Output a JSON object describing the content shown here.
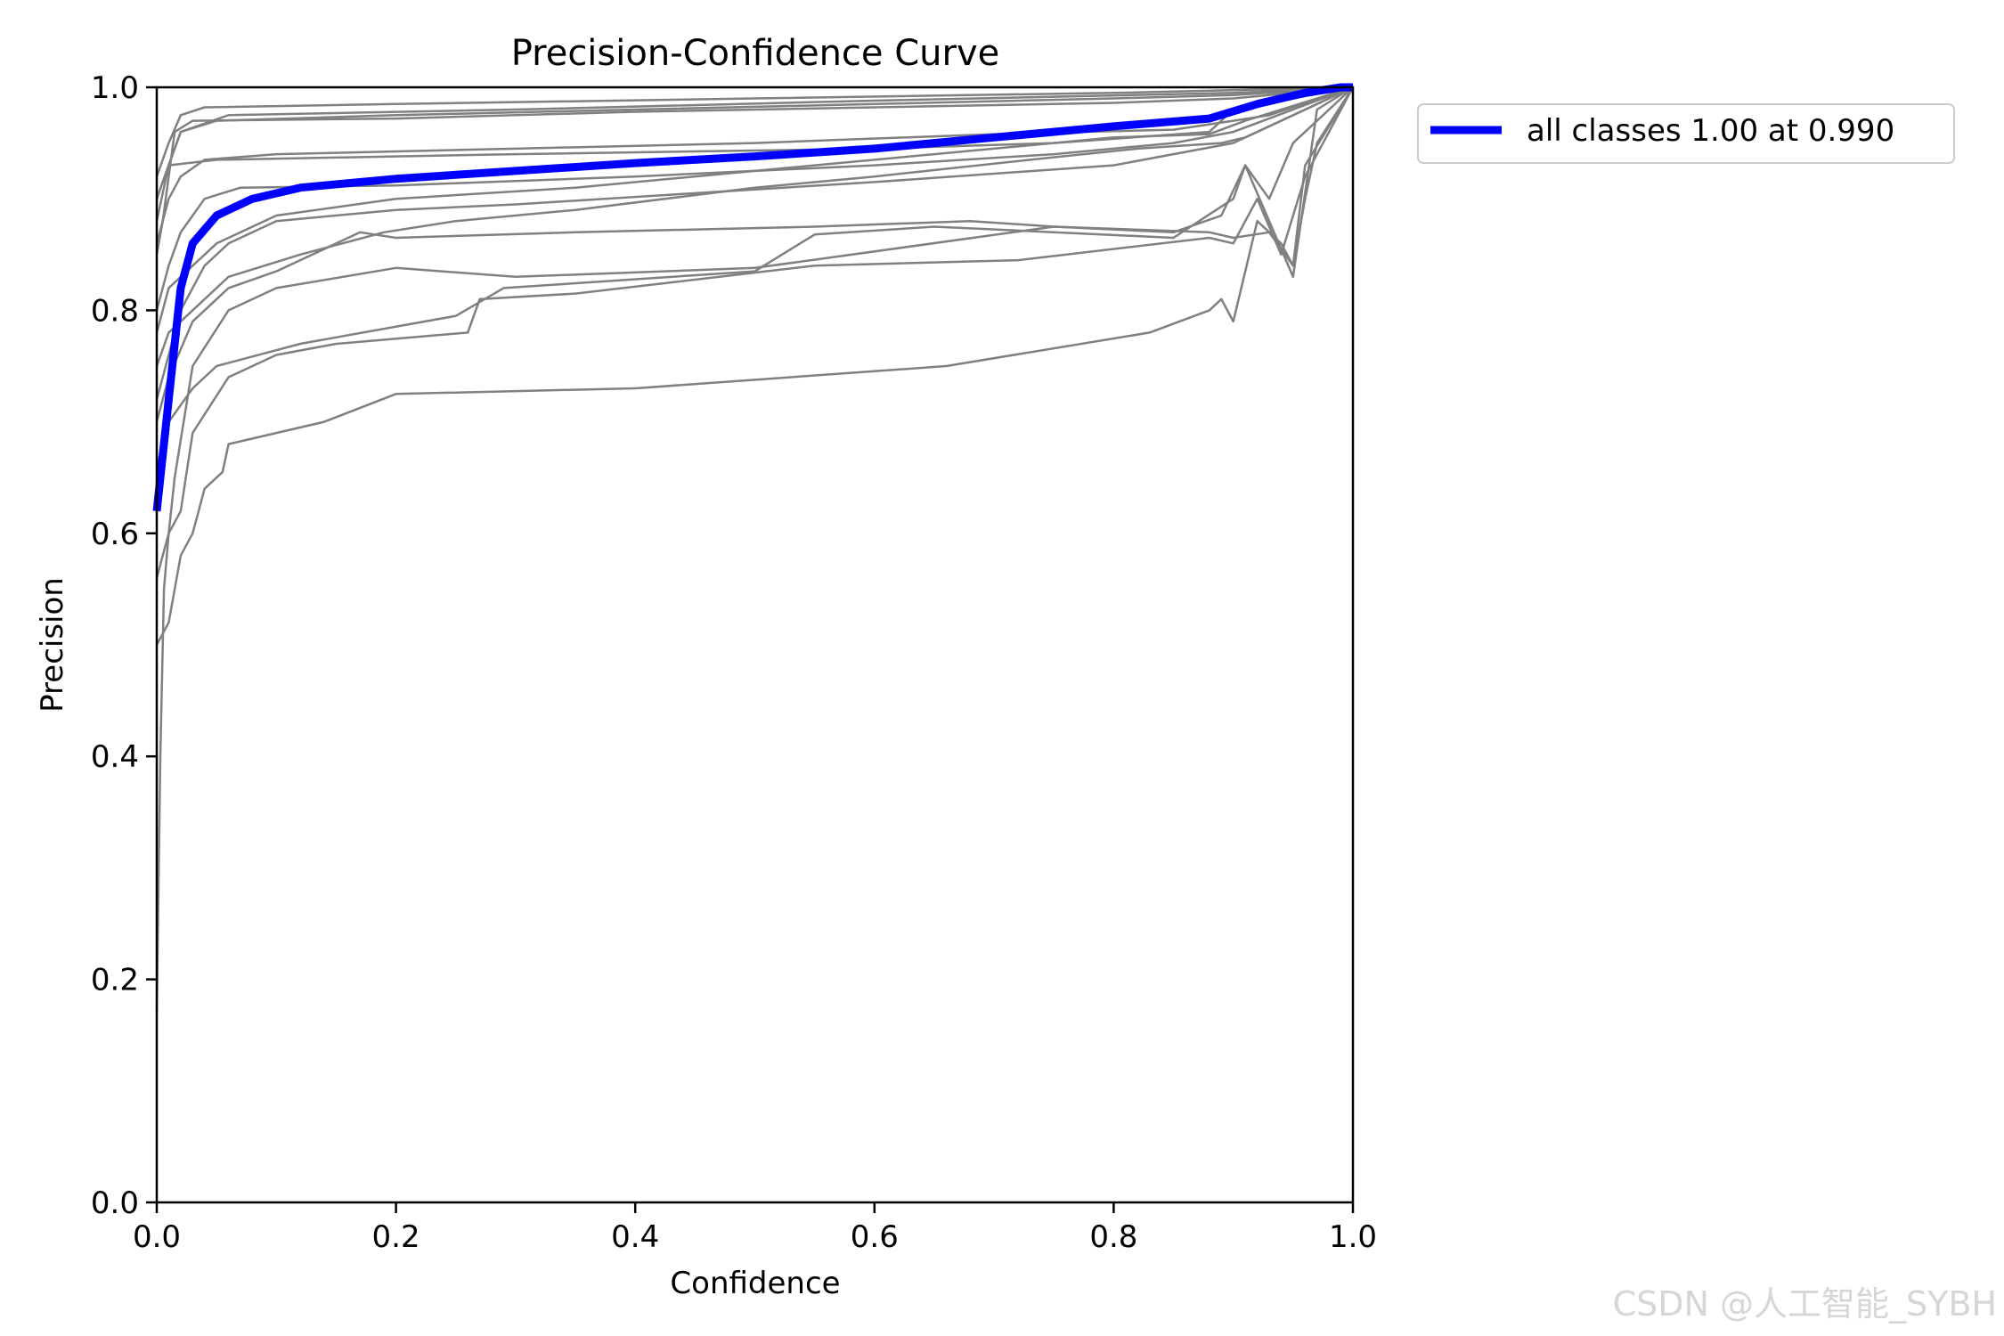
{
  "chart_data": {
    "type": "line",
    "title": "Precision-Confidence Curve",
    "xlabel": "Confidence",
    "ylabel": "Precision",
    "xlim": [
      0,
      1
    ],
    "ylim": [
      0,
      1
    ],
    "xticks": [
      "0.0",
      "0.2",
      "0.4",
      "0.6",
      "0.8",
      "1.0"
    ],
    "yticks": [
      "0.0",
      "0.2",
      "0.4",
      "0.6",
      "0.8",
      "1.0"
    ],
    "legend_position": "outside-top-right",
    "colors": {
      "all": "#0000ff",
      "class": "#808080"
    },
    "series": [
      {
        "name": "all classes 1.00 at 0.990",
        "points": [
          [
            0,
            0.62
          ],
          [
            0.01,
            0.72
          ],
          [
            0.02,
            0.82
          ],
          [
            0.03,
            0.86
          ],
          [
            0.05,
            0.885
          ],
          [
            0.08,
            0.9
          ],
          [
            0.12,
            0.91
          ],
          [
            0.2,
            0.918
          ],
          [
            0.3,
            0.925
          ],
          [
            0.4,
            0.932
          ],
          [
            0.5,
            0.938
          ],
          [
            0.6,
            0.945
          ],
          [
            0.7,
            0.955
          ],
          [
            0.8,
            0.965
          ],
          [
            0.88,
            0.972
          ],
          [
            0.92,
            0.985
          ],
          [
            0.96,
            0.995
          ],
          [
            0.99,
            1.0
          ],
          [
            1.0,
            1.0
          ]
        ]
      }
    ],
    "class_curves": [
      [
        [
          0,
          0.17
        ],
        [
          0.003,
          0.4
        ],
        [
          0.006,
          0.55
        ],
        [
          0.01,
          0.6
        ],
        [
          0.015,
          0.65
        ],
        [
          0.03,
          0.75
        ],
        [
          0.06,
          0.8
        ],
        [
          0.1,
          0.82
        ],
        [
          0.2,
          0.838
        ],
        [
          0.3,
          0.83
        ],
        [
          0.5,
          0.838
        ],
        [
          0.75,
          0.875
        ],
        [
          0.88,
          0.87
        ],
        [
          0.9,
          0.865
        ],
        [
          0.93,
          0.87
        ],
        [
          0.95,
          0.84
        ],
        [
          0.96,
          0.9
        ],
        [
          0.97,
          0.95
        ],
        [
          1.0,
          1.0
        ]
      ],
      [
        [
          0,
          0.56
        ],
        [
          0.01,
          0.6
        ],
        [
          0.02,
          0.62
        ],
        [
          0.03,
          0.69
        ],
        [
          0.06,
          0.74
        ],
        [
          0.1,
          0.76
        ],
        [
          0.15,
          0.77
        ],
        [
          0.26,
          0.78
        ],
        [
          0.27,
          0.81
        ],
        [
          0.35,
          0.815
        ],
        [
          0.55,
          0.84
        ],
        [
          0.72,
          0.845
        ],
        [
          0.88,
          0.865
        ],
        [
          0.9,
          0.86
        ],
        [
          0.92,
          0.9
        ],
        [
          0.94,
          0.85
        ],
        [
          0.96,
          0.92
        ],
        [
          1.0,
          1.0
        ]
      ],
      [
        [
          0,
          0.5
        ],
        [
          0.01,
          0.52
        ],
        [
          0.02,
          0.58
        ],
        [
          0.03,
          0.6
        ],
        [
          0.04,
          0.64
        ],
        [
          0.055,
          0.655
        ],
        [
          0.06,
          0.68
        ],
        [
          0.14,
          0.7
        ],
        [
          0.2,
          0.725
        ],
        [
          0.4,
          0.73
        ],
        [
          0.66,
          0.75
        ],
        [
          0.83,
          0.78
        ],
        [
          0.88,
          0.8
        ],
        [
          0.89,
          0.81
        ],
        [
          0.9,
          0.79
        ],
        [
          0.92,
          0.88
        ],
        [
          0.94,
          0.86
        ],
        [
          0.95,
          0.84
        ],
        [
          0.96,
          0.93
        ],
        [
          1.0,
          1.0
        ]
      ],
      [
        [
          0,
          0.66
        ],
        [
          0.01,
          0.7
        ],
        [
          0.03,
          0.73
        ],
        [
          0.05,
          0.75
        ],
        [
          0.12,
          0.77
        ],
        [
          0.25,
          0.795
        ],
        [
          0.29,
          0.82
        ],
        [
          0.5,
          0.835
        ],
        [
          0.55,
          0.868
        ],
        [
          0.65,
          0.875
        ],
        [
          0.85,
          0.865
        ],
        [
          0.9,
          0.9
        ],
        [
          0.91,
          0.93
        ],
        [
          0.93,
          0.88
        ],
        [
          0.95,
          0.83
        ],
        [
          0.97,
          0.98
        ],
        [
          1.0,
          1.0
        ]
      ],
      [
        [
          0,
          0.7
        ],
        [
          0.01,
          0.74
        ],
        [
          0.03,
          0.79
        ],
        [
          0.06,
          0.82
        ],
        [
          0.1,
          0.835
        ],
        [
          0.17,
          0.87
        ],
        [
          0.2,
          0.865
        ],
        [
          0.35,
          0.87
        ],
        [
          0.55,
          0.875
        ],
        [
          0.68,
          0.88
        ],
        [
          0.75,
          0.875
        ],
        [
          0.85,
          0.87
        ],
        [
          0.89,
          0.885
        ],
        [
          0.91,
          0.93
        ],
        [
          0.93,
          0.9
        ],
        [
          0.95,
          0.95
        ],
        [
          0.97,
          0.97
        ],
        [
          1.0,
          1.0
        ]
      ],
      [
        [
          0,
          0.75
        ],
        [
          0.01,
          0.78
        ],
        [
          0.03,
          0.8
        ],
        [
          0.06,
          0.83
        ],
        [
          0.12,
          0.85
        ],
        [
          0.19,
          0.87
        ],
        [
          0.25,
          0.88
        ],
        [
          0.35,
          0.89
        ],
        [
          0.5,
          0.91
        ],
        [
          0.6,
          0.92
        ],
        [
          0.73,
          0.935
        ],
        [
          0.82,
          0.945
        ],
        [
          0.89,
          0.95
        ],
        [
          0.91,
          0.955
        ],
        [
          0.94,
          0.97
        ],
        [
          1.0,
          1.0
        ]
      ],
      [
        [
          0,
          0.86
        ],
        [
          0.01,
          0.9
        ],
        [
          0.02,
          0.92
        ],
        [
          0.04,
          0.935
        ],
        [
          0.1,
          0.94
        ],
        [
          0.3,
          0.945
        ],
        [
          0.5,
          0.95
        ],
        [
          0.7,
          0.958
        ],
        [
          0.85,
          0.962
        ],
        [
          0.9,
          0.97
        ],
        [
          0.93,
          0.975
        ],
        [
          1.0,
          1.0
        ]
      ],
      [
        [
          0,
          0.9
        ],
        [
          0.01,
          0.93
        ],
        [
          0.02,
          0.96
        ],
        [
          0.05,
          0.97
        ],
        [
          0.2,
          0.975
        ],
        [
          0.4,
          0.98
        ],
        [
          0.6,
          0.985
        ],
        [
          0.8,
          0.99
        ],
        [
          0.9,
          0.993
        ],
        [
          1.0,
          1.0
        ]
      ],
      [
        [
          0,
          0.92
        ],
        [
          0.01,
          0.95
        ],
        [
          0.02,
          0.975
        ],
        [
          0.04,
          0.982
        ],
        [
          0.2,
          0.985
        ],
        [
          0.5,
          0.99
        ],
        [
          0.8,
          0.995
        ],
        [
          1.0,
          1.0
        ]
      ],
      [
        [
          0,
          0.85
        ],
        [
          0.005,
          0.88
        ],
        [
          0.015,
          0.96
        ],
        [
          0.03,
          0.97
        ],
        [
          0.2,
          0.972
        ],
        [
          0.4,
          0.978
        ],
        [
          0.6,
          0.982
        ],
        [
          0.8,
          0.986
        ],
        [
          0.9,
          0.99
        ],
        [
          1.0,
          1.0
        ]
      ],
      [
        [
          0,
          0.8
        ],
        [
          0.01,
          0.84
        ],
        [
          0.02,
          0.87
        ],
        [
          0.04,
          0.9
        ],
        [
          0.07,
          0.91
        ],
        [
          0.2,
          0.912
        ],
        [
          0.4,
          0.92
        ],
        [
          0.6,
          0.93
        ],
        [
          0.75,
          0.94
        ],
        [
          0.85,
          0.95
        ],
        [
          0.9,
          0.96
        ],
        [
          0.95,
          0.98
        ],
        [
          1.0,
          1.0
        ]
      ],
      [
        [
          0,
          0.72
        ],
        [
          0.02,
          0.8
        ],
        [
          0.04,
          0.84
        ],
        [
          0.06,
          0.86
        ],
        [
          0.1,
          0.88
        ],
        [
          0.2,
          0.89
        ],
        [
          0.3,
          0.895
        ],
        [
          0.45,
          0.905
        ],
        [
          0.6,
          0.915
        ],
        [
          0.8,
          0.93
        ],
        [
          0.9,
          0.95
        ],
        [
          1.0,
          1.0
        ]
      ],
      [
        [
          0,
          0.88
        ],
        [
          0.01,
          0.93
        ],
        [
          0.05,
          0.935
        ],
        [
          0.3,
          0.94
        ],
        [
          0.6,
          0.945
        ],
        [
          0.75,
          0.95
        ],
        [
          0.88,
          0.96
        ],
        [
          0.9,
          0.98
        ],
        [
          1.0,
          1.0
        ]
      ],
      [
        [
          0,
          0.9
        ],
        [
          0.02,
          0.96
        ],
        [
          0.06,
          0.975
        ],
        [
          0.3,
          0.98
        ],
        [
          0.6,
          0.988
        ],
        [
          0.9,
          0.995
        ],
        [
          1.0,
          1.0
        ]
      ],
      [
        [
          0,
          0.78
        ],
        [
          0.01,
          0.82
        ],
        [
          0.05,
          0.86
        ],
        [
          0.1,
          0.885
        ],
        [
          0.2,
          0.9
        ],
        [
          0.35,
          0.91
        ],
        [
          0.5,
          0.925
        ],
        [
          0.65,
          0.94
        ],
        [
          0.8,
          0.955
        ],
        [
          0.88,
          0.958
        ],
        [
          0.91,
          0.97
        ],
        [
          1.0,
          1.0
        ]
      ]
    ]
  },
  "watermark": "CSDN @人工智能_SYBH"
}
